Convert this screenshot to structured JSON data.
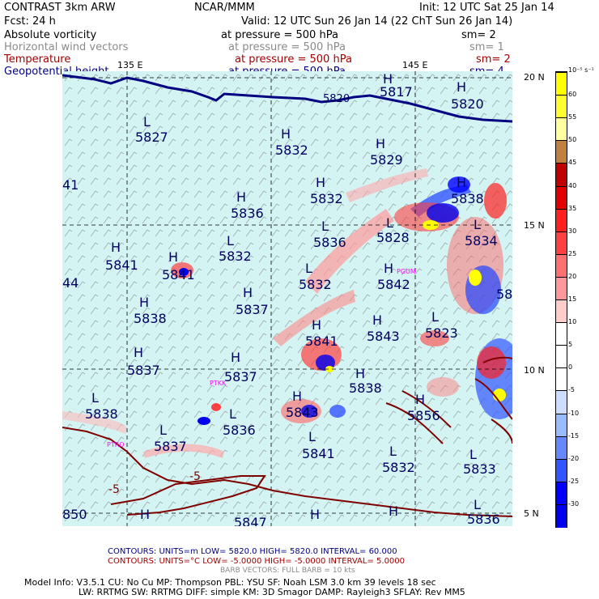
{
  "header": {
    "model": "CONTRAST  3km ARW",
    "org": "NCAR/MMM",
    "init": "Init: 12 UTC Sat 25 Jan 14",
    "fcst": "Fcst:    24 h",
    "valid": "Valid: 12 UTC Sun 26 Jan 14 (22 ChT Sun 26 Jan 14)"
  },
  "fields": [
    {
      "name": "Absolute vorticity",
      "pressure": "at pressure =  500 hPa",
      "sm": "sm= 2",
      "color": "#000000"
    },
    {
      "name": "Horizontal wind vectors",
      "pressure": "at pressure =  500 hPa",
      "sm": "sm= 1",
      "color": "#8a8a8a"
    },
    {
      "name": "Temperature",
      "pressure": "at pressure =  500 hPa",
      "sm": "sm= 2",
      "color": "#a00000"
    },
    {
      "name": "Geopotential height",
      "pressure": "at pressure =  500 hPa",
      "sm": "sm= 4",
      "color": "#000080"
    }
  ],
  "axes": {
    "lon": [
      "135 E",
      "145 E"
    ],
    "lat": [
      "20 N",
      "15 N",
      "10 N",
      "5 N"
    ]
  },
  "map_labels": [
    {
      "hl": "H",
      "val": "5817"
    },
    {
      "hl": "H",
      "val": "5820"
    },
    {
      "hl": "",
      "val": "5820"
    },
    {
      "hl": "L",
      "val": "5827"
    },
    {
      "hl": "H",
      "val": "5832"
    },
    {
      "hl": "H",
      "val": "5829"
    },
    {
      "hl": "",
      "val": "41"
    },
    {
      "hl": "H",
      "val": "5832"
    },
    {
      "hl": "H",
      "val": "5836"
    },
    {
      "hl": "H",
      "val": "5838"
    },
    {
      "hl": "L",
      "val": "5836"
    },
    {
      "hl": "L",
      "val": "5828"
    },
    {
      "hl": "L",
      "val": "5834"
    },
    {
      "hl": "H",
      "val": "5841"
    },
    {
      "hl": "L",
      "val": "5832"
    },
    {
      "hl": "H",
      "val": "5841"
    },
    {
      "hl": "",
      "val": "44"
    },
    {
      "hl": "L",
      "val": "5832"
    },
    {
      "hl": "H",
      "val": "5842"
    },
    {
      "hl": "H",
      "val": "5837"
    },
    {
      "hl": "H",
      "val": "5838"
    },
    {
      "hl": "H",
      "val": "5841"
    },
    {
      "hl": "H",
      "val": "5843"
    },
    {
      "hl": "L",
      "val": "5823"
    },
    {
      "hl": "H",
      "val": "5837"
    },
    {
      "hl": "H",
      "val": "5837"
    },
    {
      "hl": "H",
      "val": "5838"
    },
    {
      "hl": "L",
      "val": "5838"
    },
    {
      "hl": "H",
      "val": "5843"
    },
    {
      "hl": "H",
      "val": "5856"
    },
    {
      "hl": "L",
      "val": "5836"
    },
    {
      "hl": "L",
      "val": "5837"
    },
    {
      "hl": "L",
      "val": "5841"
    },
    {
      "hl": "L",
      "val": "5832"
    },
    {
      "hl": "L",
      "val": "5833"
    },
    {
      "hl": "",
      "val": "850"
    },
    {
      "hl": "H",
      "val": "5847"
    },
    {
      "hl": "H",
      "val": ""
    },
    {
      "hl": "H",
      "val": ""
    },
    {
      "hl": "L",
      "val": "5836"
    },
    {
      "hl": "",
      "val": "584"
    }
  ],
  "temp_labels": [
    "-5",
    "-5"
  ],
  "stations": [
    "PGUM",
    "PTKK",
    "PTRO"
  ],
  "colorbar": {
    "unit": "10⁻⁵ s⁻¹",
    "ticks": [
      "60",
      "55",
      "50",
      "45",
      "40",
      "35",
      "30",
      "25",
      "20",
      "15",
      "10",
      "5",
      "0",
      "-5",
      "-10",
      "-15",
      "-20",
      "-25",
      "-30"
    ],
    "colors": [
      "#ffff00",
      "#ffff30",
      "#ffffa0",
      "#c08040",
      "#c00000",
      "#e00000",
      "#ff2020",
      "#ff4040",
      "#ff7070",
      "#ff9999",
      "#ffcccc",
      "#ffffff",
      "#ffffff",
      "#ffffff",
      "#ccddff",
      "#99bbff",
      "#6688ff",
      "#3355ff",
      "#0000ff",
      "#0000ee"
    ]
  },
  "legend": {
    "line1": "CONTOURS:  UNITS=m   LOW=   5820.0         HIGH=  5820.0         INTERVAL=   60.000",
    "line2": "CONTOURS:  UNITS=°C   LOW= -5.0000         HIGH= -5.0000         INTERVAL=    5.0000",
    "line3": "BARB VECTORS:  FULL BARB = 10 kts"
  },
  "model_info": {
    "line1": "Model Info: V3.5.1     CU: No Cu     MP: Thompson     PBL: YSU      SF: Noah LSM     3.0 km   39 levels    18 sec",
    "line2": "LW: RRTMG     SW: RRTMG   DIFF: simple KM: 3D Smagor DAMP: Rayleigh3   SFLAY: Rev MM5"
  }
}
